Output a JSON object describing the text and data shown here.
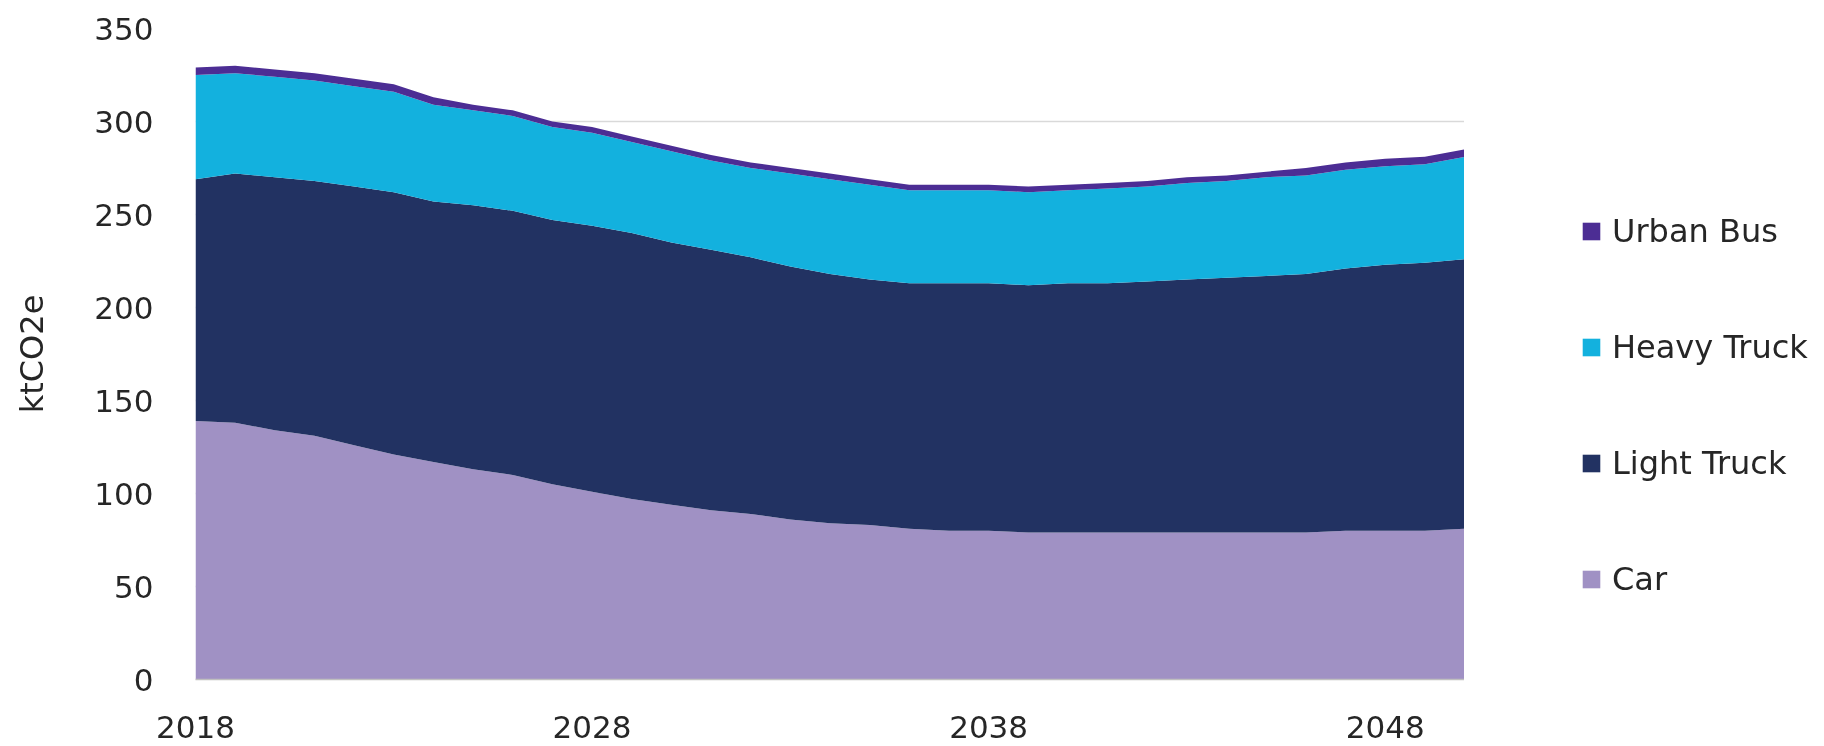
{
  "chart_data": {
    "type": "area",
    "stacked": true,
    "ylabel": "ktCO2e",
    "x": [
      2018,
      2019,
      2020,
      2021,
      2022,
      2023,
      2024,
      2025,
      2026,
      2027,
      2028,
      2029,
      2030,
      2031,
      2032,
      2033,
      2034,
      2035,
      2036,
      2037,
      2038,
      2039,
      2040,
      2041,
      2042,
      2043,
      2044,
      2045,
      2046,
      2047,
      2048,
      2049,
      2050
    ],
    "xlim": [
      2018,
      2050
    ],
    "xticks": [
      2018,
      2028,
      2038,
      2048
    ],
    "ylim": [
      0,
      350
    ],
    "yticks": [
      0,
      50,
      100,
      150,
      200,
      250,
      300,
      350
    ],
    "grid": "y",
    "legend": "right",
    "series": [
      {
        "name": "Car",
        "color": "#a091c4",
        "values": [
          139,
          138,
          134,
          131,
          126,
          121,
          117,
          113,
          110,
          105,
          101,
          97,
          94,
          91,
          89,
          86,
          84,
          83,
          81,
          80,
          80,
          79,
          79,
          79,
          79,
          79,
          79,
          79,
          79,
          80,
          80,
          80,
          81
        ]
      },
      {
        "name": "Light Truck",
        "color": "#223262",
        "values": [
          130,
          134,
          136,
          137,
          139,
          141,
          140,
          142,
          142,
          142,
          143,
          143,
          141,
          140,
          138,
          136,
          134,
          132,
          132,
          133,
          133,
          133,
          134,
          134,
          135,
          136,
          137,
          138,
          139,
          141,
          143,
          144,
          145
        ]
      },
      {
        "name": "Heavy Truck",
        "color": "#13b1de",
        "values": [
          56,
          54,
          54,
          54,
          54,
          54,
          52,
          51,
          51,
          50,
          50,
          49,
          49,
          48,
          48,
          50,
          51,
          51,
          50,
          50,
          50,
          50,
          50,
          51,
          51,
          52,
          52,
          53,
          53,
          53,
          53,
          53,
          55
        ]
      },
      {
        "name": "Urban Bus",
        "color": "#4c2d94",
        "values": [
          4,
          4,
          4,
          4,
          4,
          4,
          4,
          3,
          3,
          3,
          3,
          3,
          3,
          3,
          3,
          3,
          3,
          3,
          3,
          3,
          3,
          3,
          3,
          3,
          3,
          3,
          3,
          3,
          4,
          4,
          4,
          4,
          4
        ]
      }
    ]
  }
}
